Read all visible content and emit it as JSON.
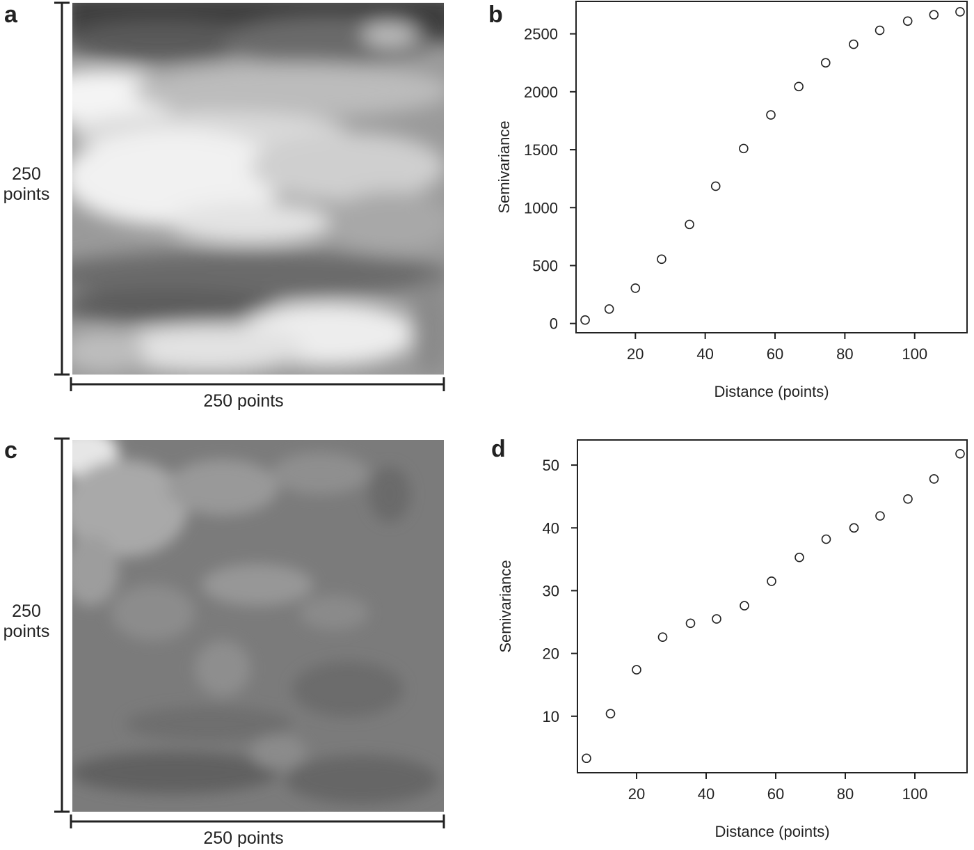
{
  "panels": [
    {
      "letter": "a",
      "side_label_1": "250",
      "side_label_2": "points",
      "bottom_label": "250 points"
    },
    {
      "letter": "b"
    },
    {
      "letter": "c",
      "side_label_1": "250",
      "side_label_2": "points",
      "bottom_label": "250 points"
    },
    {
      "letter": "d"
    }
  ],
  "colors": {
    "axis": "#222222",
    "point_stroke": "#222222",
    "map_dark": "#4d4d4d",
    "map_light": "#f2f2f2"
  },
  "chart_data": [
    {
      "type": "heatmap",
      "panel": "a",
      "description_grid": "250 x 250 points grayscale surface",
      "title": "",
      "xlabel": "250 points",
      "ylabel": "250 points"
    },
    {
      "type": "scatter",
      "panel": "b",
      "title": "",
      "xlabel": "Distance (points)",
      "ylabel": "Semivariance",
      "xlim": [
        3,
        115
      ],
      "ylim": [
        -80,
        2780
      ],
      "xticks": [
        20,
        40,
        60,
        80,
        100
      ],
      "yticks": [
        0,
        500,
        1000,
        1500,
        2000,
        2500
      ],
      "x": [
        5.6,
        12.5,
        20,
        27.5,
        35.5,
        43,
        51,
        58.8,
        66.8,
        74.5,
        82.5,
        90,
        98,
        105.5,
        113
      ],
      "y": [
        30,
        125,
        305,
        555,
        855,
        1185,
        1510,
        1800,
        2045,
        2250,
        2410,
        2530,
        2610,
        2665,
        2690
      ]
    },
    {
      "type": "heatmap",
      "panel": "c",
      "title": "",
      "xlabel": "250 points",
      "ylabel": "250 points"
    },
    {
      "type": "scatter",
      "panel": "d",
      "title": "",
      "xlabel": "Distance (points)",
      "ylabel": "Semivariance",
      "xlim": [
        3,
        115
      ],
      "ylim": [
        1,
        54
      ],
      "xticks": [
        20,
        40,
        60,
        80,
        100
      ],
      "yticks": [
        10,
        20,
        30,
        40,
        50
      ],
      "x": [
        5.6,
        12.5,
        20,
        27.5,
        35.5,
        43,
        51,
        58.8,
        66.8,
        74.5,
        82.5,
        90,
        98,
        105.5,
        113
      ],
      "y": [
        3.3,
        10.4,
        17.4,
        22.6,
        24.8,
        25.5,
        27.6,
        31.5,
        35.3,
        38.2,
        40,
        41.9,
        44.6,
        47.8,
        51.8
      ]
    }
  ]
}
